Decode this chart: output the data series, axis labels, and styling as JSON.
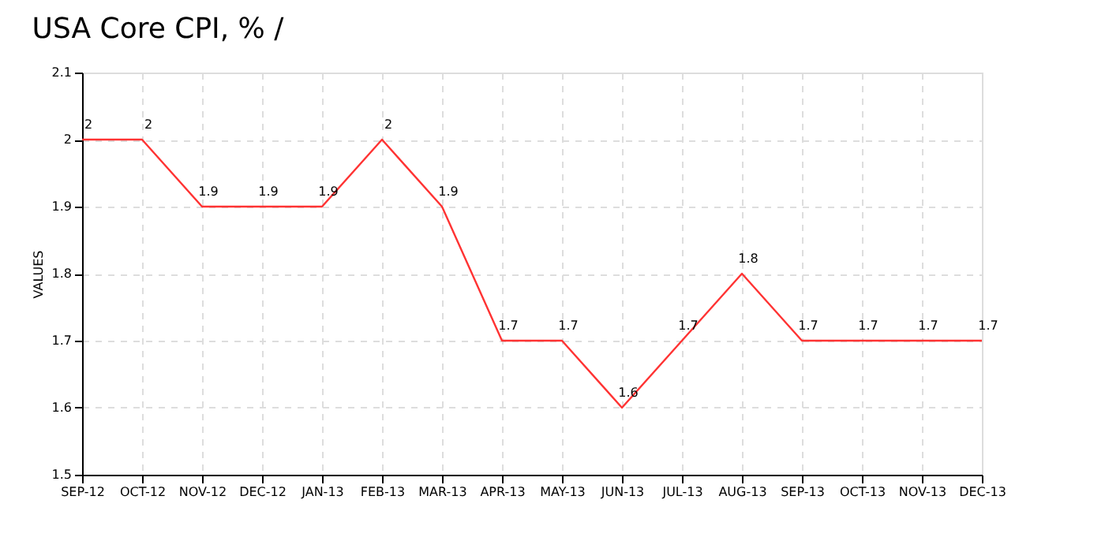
{
  "chart_data": {
    "type": "line",
    "title": "USA Core CPI, % /",
    "ylabel": "VALUES",
    "categories": [
      "SEP-12",
      "OCT-12",
      "NOV-12",
      "DEC-12",
      "JAN-13",
      "FEB-13",
      "MAR-13",
      "APR-13",
      "MAY-13",
      "JUN-13",
      "JUL-13",
      "AUG-13",
      "SEP-13",
      "OCT-13",
      "NOV-13",
      "DEC-13"
    ],
    "series": [
      {
        "color": "#ff3333",
        "values": [
          2,
          2,
          1.9,
          1.9,
          1.9,
          2,
          1.9,
          1.7,
          1.7,
          1.6,
          1.7,
          1.8,
          1.7,
          1.7,
          1.7,
          1.7
        ]
      }
    ],
    "ylim": [
      1.5,
      2.1
    ],
    "yticks": [
      1.5,
      1.6,
      1.7,
      1.8,
      1.9,
      2,
      2.1
    ],
    "grid": true,
    "data_labels": true,
    "marker": "none",
    "line_style": "solid"
  }
}
